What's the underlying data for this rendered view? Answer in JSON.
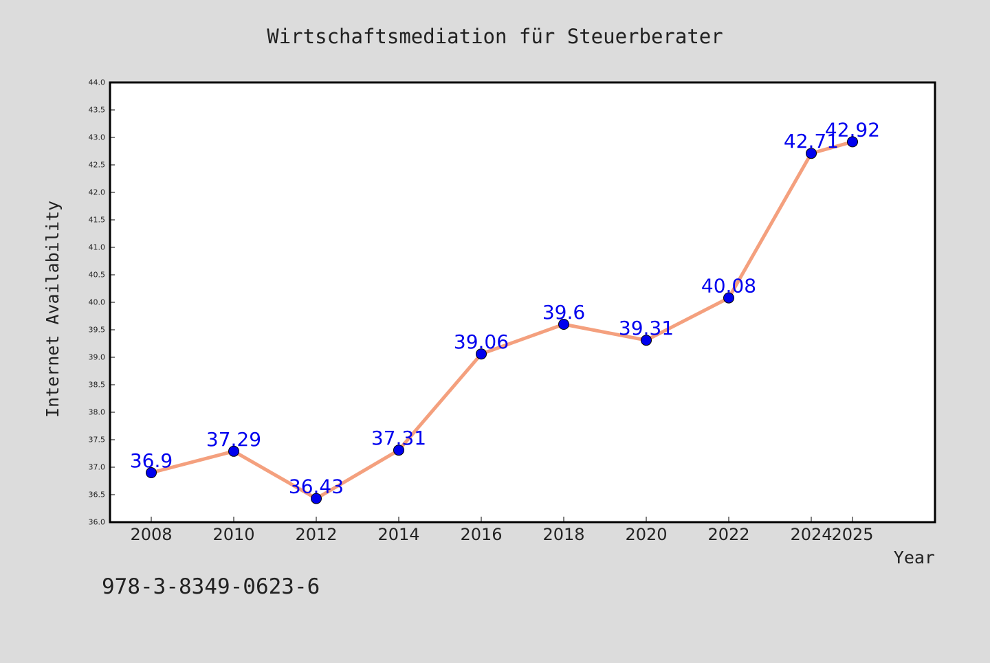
{
  "chart_data": {
    "type": "line",
    "title": "Wirtschaftsmediation für Steuerberater",
    "xlabel": "Year",
    "ylabel": "Internet Availability",
    "footnote": "978-3-8349-0623-6",
    "x": [
      "2008",
      "2010",
      "2012",
      "2014",
      "2016",
      "2018",
      "2020",
      "2022",
      "2024",
      "2025"
    ],
    "x_ticks": [
      "2008",
      "2010",
      "2012",
      "2014",
      "2016",
      "2018",
      "2020",
      "2022",
      "2024",
      "2025"
    ],
    "y_ticks": [
      "36.0",
      "36.5",
      "37.0",
      "37.5",
      "38.0",
      "38.5",
      "39.0",
      "39.5",
      "40.0",
      "40.5",
      "41.0",
      "41.5",
      "42.0",
      "42.5",
      "43.0",
      "43.5",
      "44.0"
    ],
    "series": [
      {
        "values": [
          36.9,
          37.29,
          36.43,
          37.31,
          39.06,
          39.6,
          39.31,
          40.08,
          42.71,
          42.92
        ],
        "labels": [
          "36.9",
          "37.29",
          "36.43",
          "37.31",
          "39.06",
          "39.6",
          "39.31",
          "40.08",
          "42.71",
          "42.92"
        ]
      }
    ],
    "ylim": [
      36.0,
      44.0
    ],
    "grid": false,
    "colors": {
      "background": "#dcdcdc",
      "plot_background": "#ffffff",
      "line": "#f4a07e",
      "marker": "#0000ee",
      "data_label": "#0000ee",
      "text": "#222222"
    }
  }
}
